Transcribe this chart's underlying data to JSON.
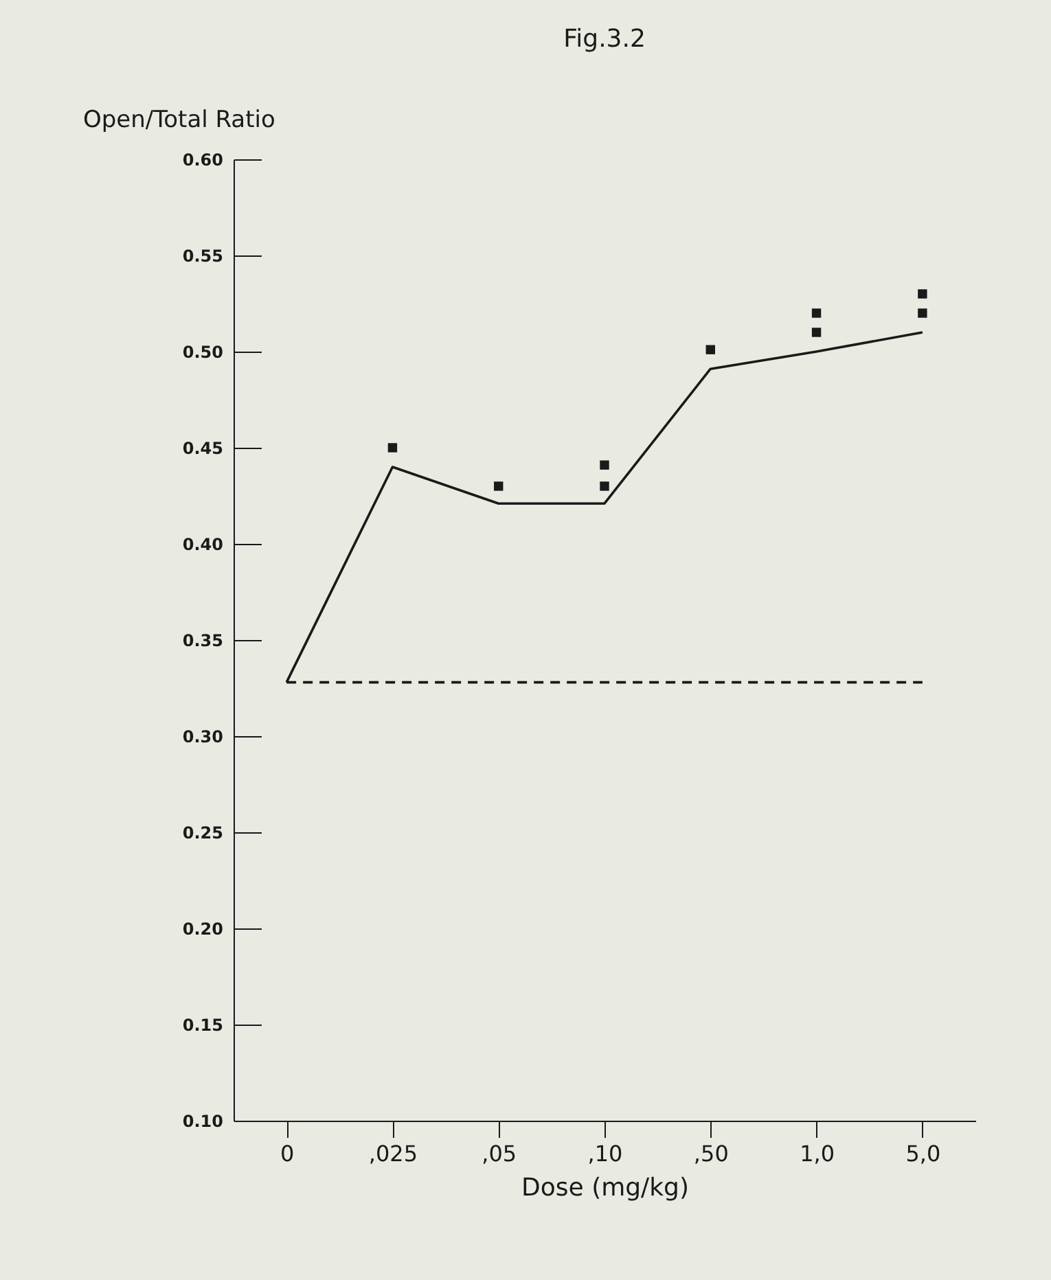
{
  "chart_data": {
    "type": "line",
    "title": "Fig.3.2",
    "xlabel": "Dose (mg/kg)",
    "ylabel": "Open/Total Ratio",
    "categories": [
      "0",
      ",025",
      ",05",
      ",10",
      ",50",
      "1,0",
      "5,0"
    ],
    "series": [
      {
        "color": "#1a1a1a",
        "line_style": "solid",
        "values": [
          0.328,
          0.44,
          0.421,
          0.421,
          0.491,
          0.5,
          0.51
        ]
      },
      {
        "color": "#1a1a1a",
        "line_style": "dashed",
        "values": [
          0.328,
          0.328,
          0.328,
          0.328,
          0.328,
          0.328,
          0.328
        ]
      },
      {
        "type": "scatter",
        "color": "#1a1a1a",
        "marker": "square",
        "x": [
          ",025",
          ",05",
          ",10",
          ",10",
          ",50",
          "1,0",
          "1,0",
          "5,0",
          "5,0"
        ],
        "values": [
          0.45,
          0.43,
          0.441,
          0.43,
          0.501,
          0.52,
          0.51,
          0.53,
          0.52
        ]
      }
    ],
    "ylim": [
      0.1,
      0.6
    ],
    "yticks": [
      {
        "value": 0.1,
        "label": "0.10"
      },
      0.15,
      {
        "value": 0.2,
        "label": "0.20"
      },
      0.25,
      {
        "value": 0.3,
        "label": "0.30"
      },
      0.35,
      {
        "value": 0.4,
        "label": "0.40"
      },
      0.45,
      {
        "value": 0.5,
        "label": "0.50"
      },
      0.55,
      {
        "value": 0.6,
        "label": "0.60"
      }
    ],
    "grid": false
  }
}
